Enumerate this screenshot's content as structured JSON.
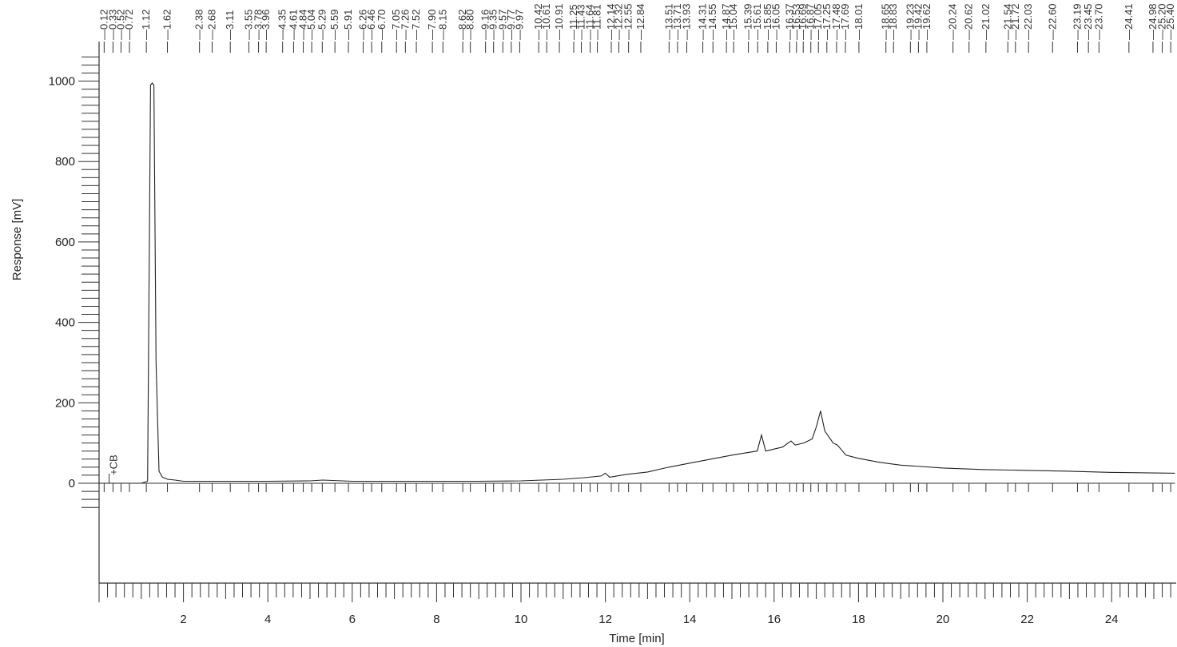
{
  "chart_data": {
    "type": "line",
    "title": "",
    "xlabel": "Time [min]",
    "ylabel": "Response [mV]",
    "xlim": [
      0,
      25.5
    ],
    "ylim": [
      -250,
      1060
    ],
    "x_ticks": [
      2,
      4,
      6,
      8,
      10,
      12,
      14,
      16,
      18,
      20,
      22,
      24
    ],
    "y_ticks": [
      0,
      200,
      400,
      600,
      800,
      1000
    ],
    "grid": false,
    "legend": "none",
    "annotations": [
      {
        "label": "CB",
        "x": 0.2,
        "y": 20
      }
    ],
    "series": [
      {
        "x": [
          0.0,
          0.2,
          1.0,
          1.15,
          1.22,
          1.26,
          1.3,
          1.35,
          1.42,
          1.5,
          1.62,
          1.8,
          2.0,
          3.0,
          4.0,
          5.0,
          5.3,
          6.0,
          7.0,
          8.0,
          9.0,
          10.0,
          10.5,
          11.0,
          11.5,
          11.9,
          12.0,
          12.1,
          12.5,
          13.0,
          13.5,
          14.0,
          14.5,
          15.0,
          15.3,
          15.6,
          15.7,
          15.8,
          16.0,
          16.2,
          16.4,
          16.5,
          16.7,
          16.9,
          17.0,
          17.1,
          17.2,
          17.3,
          17.4,
          17.5,
          17.7,
          18.0,
          18.5,
          19.0,
          20.0,
          21.0,
          22.0,
          23.0,
          24.0,
          25.5
        ],
        "y": [
          0,
          0,
          0,
          5,
          990,
          995,
          990,
          300,
          30,
          15,
          10,
          8,
          5,
          5,
          5,
          6,
          8,
          5,
          5,
          5,
          5,
          6,
          8,
          10,
          14,
          18,
          25,
          15,
          22,
          28,
          40,
          50,
          60,
          70,
          75,
          80,
          120,
          80,
          85,
          90,
          105,
          95,
          100,
          110,
          140,
          180,
          130,
          115,
          100,
          95,
          70,
          62,
          52,
          45,
          38,
          34,
          32,
          30,
          27,
          25
        ]
      }
    ],
    "baseline": {
      "x": [
        0,
        10,
        12,
        14,
        16,
        18,
        20,
        22,
        25.5
      ],
      "y": [
        0,
        0,
        0,
        0,
        0,
        0,
        0,
        0,
        0
      ]
    },
    "peak_labels": [
      "0.12",
      "0.33",
      "0.52",
      "0.72",
      "1.12",
      "1.62",
      "2.38",
      "2.68",
      "3.11",
      "3.55",
      "3.78",
      "3.96",
      "4.35",
      "4.61",
      "4.84",
      "5.04",
      "5.29",
      "5.59",
      "5.91",
      "6.26",
      "6.46",
      "6.70",
      "7.05",
      "7.26",
      "7.52",
      "7.90",
      "8.15",
      "8.62",
      "8.80",
      "9.16",
      "9.35",
      "9.57",
      "9.77",
      "9.97",
      "10.42",
      "10.61",
      "10.91",
      "11.25",
      "11.43",
      "11.64",
      "11.81",
      "12.14",
      "12.32",
      "12.55",
      "12.84",
      "13.51",
      "13.71",
      "13.93",
      "14.31",
      "14.55",
      "14.87",
      "15.04",
      "15.39",
      "15.61",
      "15.85",
      "16.05",
      "16.37",
      "16.53",
      "16.69",
      "16.87",
      "17.05",
      "17.25",
      "17.48",
      "17.69",
      "18.01",
      "18.65",
      "18.83",
      "19.23",
      "19.42",
      "19.62",
      "20.24",
      "20.62",
      "21.02",
      "21.54",
      "21.72",
      "22.03",
      "22.60",
      "23.19",
      "23.45",
      "23.70",
      "24.41",
      "24.98",
      "25.20",
      "25.40"
    ],
    "peak_times": [
      0.12,
      0.33,
      0.52,
      0.72,
      1.12,
      1.62,
      2.38,
      2.68,
      3.11,
      3.55,
      3.78,
      3.96,
      4.35,
      4.61,
      4.84,
      5.04,
      5.29,
      5.59,
      5.91,
      6.26,
      6.46,
      6.7,
      7.05,
      7.26,
      7.52,
      7.9,
      8.15,
      8.62,
      8.8,
      9.16,
      9.35,
      9.57,
      9.77,
      9.97,
      10.42,
      10.61,
      10.91,
      11.25,
      11.43,
      11.64,
      11.81,
      12.14,
      12.32,
      12.55,
      12.84,
      13.51,
      13.71,
      13.93,
      14.31,
      14.55,
      14.87,
      15.04,
      15.39,
      15.61,
      15.85,
      16.05,
      16.37,
      16.53,
      16.69,
      16.87,
      17.05,
      17.25,
      17.48,
      17.69,
      18.01,
      18.65,
      18.83,
      19.23,
      19.42,
      19.62,
      20.24,
      20.62,
      21.02,
      21.54,
      21.72,
      22.03,
      22.6,
      23.19,
      23.45,
      23.7,
      24.41,
      24.98,
      25.2,
      25.4
    ]
  },
  "colors": {
    "trace": "#222222",
    "axis": "#333333",
    "background": "#ffffff"
  }
}
